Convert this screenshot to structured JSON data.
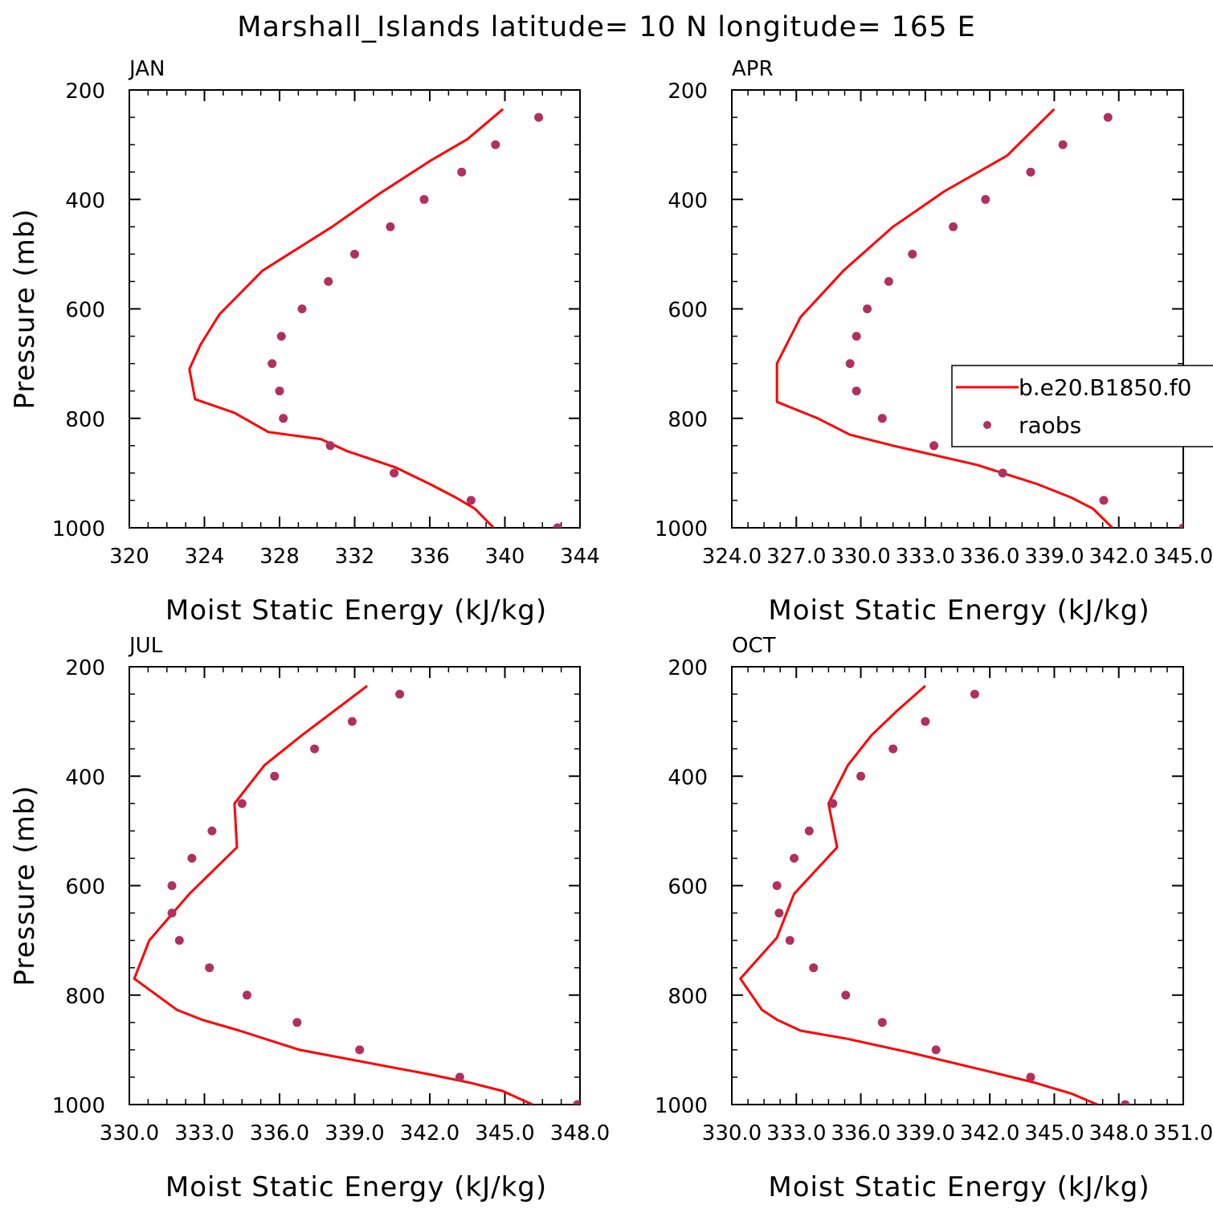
{
  "figure": {
    "title": "Marshall_Islands  latitude= 10 N longitude= 165 E",
    "ylabel": "Pressure (mb)",
    "xlabel": "Moist Static Energy (kJ/kg)"
  },
  "colors": {
    "model_line": "#ff0000",
    "raobs_marker": "#b03060",
    "axes": "#000000",
    "background": "#ffffff"
  },
  "legend": {
    "entries": [
      "b.e20.B1850.f0",
      "raobs"
    ],
    "location": "right, inside APR panel (clipped at figure edge)"
  },
  "chart_data": [
    {
      "type": "line",
      "panel": "JAN",
      "xlim": [
        320,
        344
      ],
      "ylim": [
        1000,
        200
      ],
      "x_ticks": [
        320,
        324,
        328,
        332,
        336,
        340,
        344
      ],
      "x_tick_labels": [
        "320",
        "324",
        "328",
        "332",
        "336",
        "340",
        "344"
      ],
      "y_ticks": [
        200,
        400,
        600,
        800,
        1000
      ],
      "y_tick_labels": [
        "200",
        "400",
        "600",
        "800",
        "1000"
      ],
      "series": [
        {
          "name": "b.e20.B1850.f0",
          "kind": "line",
          "points": [
            [
              339.4,
              1000
            ],
            [
              338.4,
              965
            ],
            [
              337.4,
              945
            ],
            [
              336.0,
              920
            ],
            [
              334.2,
              890
            ],
            [
              331.6,
              860
            ],
            [
              330.2,
              838
            ],
            [
              327.4,
              825
            ],
            [
              325.6,
              790
            ],
            [
              323.5,
              765
            ],
            [
              323.2,
              710
            ],
            [
              323.8,
              665
            ],
            [
              324.8,
              610
            ],
            [
              327.1,
              530
            ],
            [
              330.8,
              450
            ],
            [
              333.3,
              390
            ],
            [
              336.0,
              330
            ],
            [
              338.0,
              290
            ],
            [
              339.9,
              235
            ]
          ]
        },
        {
          "name": "raobs",
          "kind": "scatter",
          "points": [
            [
              342.8,
              1000
            ],
            [
              338.2,
              950
            ],
            [
              334.1,
              900
            ],
            [
              330.7,
              850
            ],
            [
              328.2,
              800
            ],
            [
              328.0,
              750
            ],
            [
              327.6,
              700
            ],
            [
              328.1,
              650
            ],
            [
              329.2,
              600
            ],
            [
              330.6,
              550
            ],
            [
              332.0,
              500
            ],
            [
              333.9,
              450
            ],
            [
              335.7,
              400
            ],
            [
              337.7,
              350
            ],
            [
              339.5,
              300
            ],
            [
              341.8,
              250
            ]
          ]
        }
      ]
    },
    {
      "type": "line",
      "panel": "APR",
      "xlim": [
        324.0,
        345.0
      ],
      "ylim": [
        1000,
        200
      ],
      "x_ticks": [
        324.0,
        327.0,
        330.0,
        333.0,
        336.0,
        339.0,
        342.0,
        345.0
      ],
      "x_tick_labels": [
        "324.0",
        "327.0",
        "330.0",
        "333.0",
        "336.0",
        "339.0",
        "342.0",
        "345.0"
      ],
      "y_ticks": [
        200,
        400,
        600,
        800,
        1000
      ],
      "y_tick_labels": [
        "200",
        "400",
        "600",
        "800",
        "1000"
      ],
      "series": [
        {
          "name": "b.e20.B1850.f0",
          "kind": "line",
          "points": [
            [
              341.7,
              1000
            ],
            [
              340.8,
              965
            ],
            [
              339.8,
              945
            ],
            [
              338.2,
              920
            ],
            [
              335.4,
              885
            ],
            [
              331.5,
              850
            ],
            [
              329.5,
              830
            ],
            [
              328.0,
              800
            ],
            [
              326.1,
              770
            ],
            [
              326.1,
              700
            ],
            [
              327.2,
              615
            ],
            [
              329.2,
              530
            ],
            [
              331.5,
              450
            ],
            [
              333.9,
              385
            ],
            [
              336.8,
              320
            ],
            [
              339.0,
              235
            ]
          ]
        },
        {
          "name": "raobs",
          "kind": "scatter",
          "points": [
            [
              345.0,
              1000
            ],
            [
              341.3,
              950
            ],
            [
              336.6,
              900
            ],
            [
              333.4,
              850
            ],
            [
              331.0,
              800
            ],
            [
              329.8,
              750
            ],
            [
              329.5,
              700
            ],
            [
              329.8,
              650
            ],
            [
              330.3,
              600
            ],
            [
              331.3,
              550
            ],
            [
              332.4,
              500
            ],
            [
              334.3,
              450
            ],
            [
              335.8,
              400
            ],
            [
              337.9,
              350
            ],
            [
              339.4,
              300
            ],
            [
              341.5,
              250
            ]
          ]
        }
      ]
    },
    {
      "type": "line",
      "panel": "JUL",
      "xlim": [
        330.0,
        348.0
      ],
      "ylim": [
        1000,
        200
      ],
      "x_ticks": [
        330.0,
        333.0,
        336.0,
        339.0,
        342.0,
        345.0,
        348.0
      ],
      "x_tick_labels": [
        "330.0",
        "333.0",
        "336.0",
        "339.0",
        "342.0",
        "345.0",
        "348.0"
      ],
      "y_ticks": [
        200,
        400,
        600,
        800,
        1000
      ],
      "y_tick_labels": [
        "200",
        "400",
        "600",
        "800",
        "1000"
      ],
      "series": [
        {
          "name": "b.e20.B1850.f0",
          "kind": "line",
          "points": [
            [
              346.1,
              1000
            ],
            [
              344.9,
              975
            ],
            [
              343.6,
              960
            ],
            [
              342.0,
              945
            ],
            [
              336.8,
              900
            ],
            [
              334.4,
              865
            ],
            [
              332.9,
              845
            ],
            [
              331.9,
              827
            ],
            [
              330.2,
              770
            ],
            [
              330.8,
              700
            ],
            [
              332.4,
              615
            ],
            [
              334.3,
              530
            ],
            [
              334.2,
              450
            ],
            [
              335.4,
              380
            ],
            [
              336.9,
              325
            ],
            [
              338.2,
              280
            ],
            [
              339.5,
              235
            ]
          ]
        },
        {
          "name": "raobs",
          "kind": "scatter",
          "points": [
            [
              347.9,
              1000
            ],
            [
              343.2,
              950
            ],
            [
              339.2,
              900
            ],
            [
              336.7,
              850
            ],
            [
              334.7,
              800
            ],
            [
              333.2,
              750
            ],
            [
              332.0,
              700
            ],
            [
              331.7,
              650
            ],
            [
              331.7,
              600
            ],
            [
              332.5,
              550
            ],
            [
              333.3,
              500
            ],
            [
              334.5,
              450
            ],
            [
              335.8,
              400
            ],
            [
              337.4,
              350
            ],
            [
              338.9,
              300
            ],
            [
              340.8,
              250
            ]
          ]
        }
      ]
    },
    {
      "type": "line",
      "panel": "OCT",
      "xlim": [
        330.0,
        351.0
      ],
      "ylim": [
        1000,
        200
      ],
      "x_ticks": [
        330.0,
        333.0,
        336.0,
        339.0,
        342.0,
        345.0,
        348.0,
        351.0
      ],
      "x_tick_labels": [
        "330.0",
        "333.0",
        "336.0",
        "339.0",
        "342.0",
        "345.0",
        "348.0",
        "351.0"
      ],
      "y_ticks": [
        200,
        400,
        600,
        800,
        1000
      ],
      "y_tick_labels": [
        "200",
        "400",
        "600",
        "800",
        "1000"
      ],
      "series": [
        {
          "name": "b.e20.B1850.f0",
          "kind": "line",
          "points": [
            [
              347.0,
              1000
            ],
            [
              345.8,
              980
            ],
            [
              344.1,
              960
            ],
            [
              342.0,
              940
            ],
            [
              338.3,
              905
            ],
            [
              335.4,
              880
            ],
            [
              333.2,
              865
            ],
            [
              332.1,
              845
            ],
            [
              331.4,
              827
            ],
            [
              330.4,
              770
            ],
            [
              332.1,
              695
            ],
            [
              332.9,
              615
            ],
            [
              334.9,
              530
            ],
            [
              334.5,
              450
            ],
            [
              335.4,
              380
            ],
            [
              336.5,
              325
            ],
            [
              337.7,
              280
            ],
            [
              339.0,
              235
            ]
          ]
        },
        {
          "name": "raobs",
          "kind": "scatter",
          "points": [
            [
              348.3,
              1000
            ],
            [
              343.9,
              950
            ],
            [
              339.5,
              900
            ],
            [
              337.0,
              850
            ],
            [
              335.3,
              800
            ],
            [
              333.8,
              750
            ],
            [
              332.7,
              700
            ],
            [
              332.2,
              650
            ],
            [
              332.1,
              600
            ],
            [
              332.9,
              550
            ],
            [
              333.6,
              500
            ],
            [
              334.7,
              450
            ],
            [
              336.0,
              400
            ],
            [
              337.5,
              350
            ],
            [
              339.0,
              300
            ],
            [
              341.3,
              250
            ]
          ]
        }
      ]
    }
  ]
}
